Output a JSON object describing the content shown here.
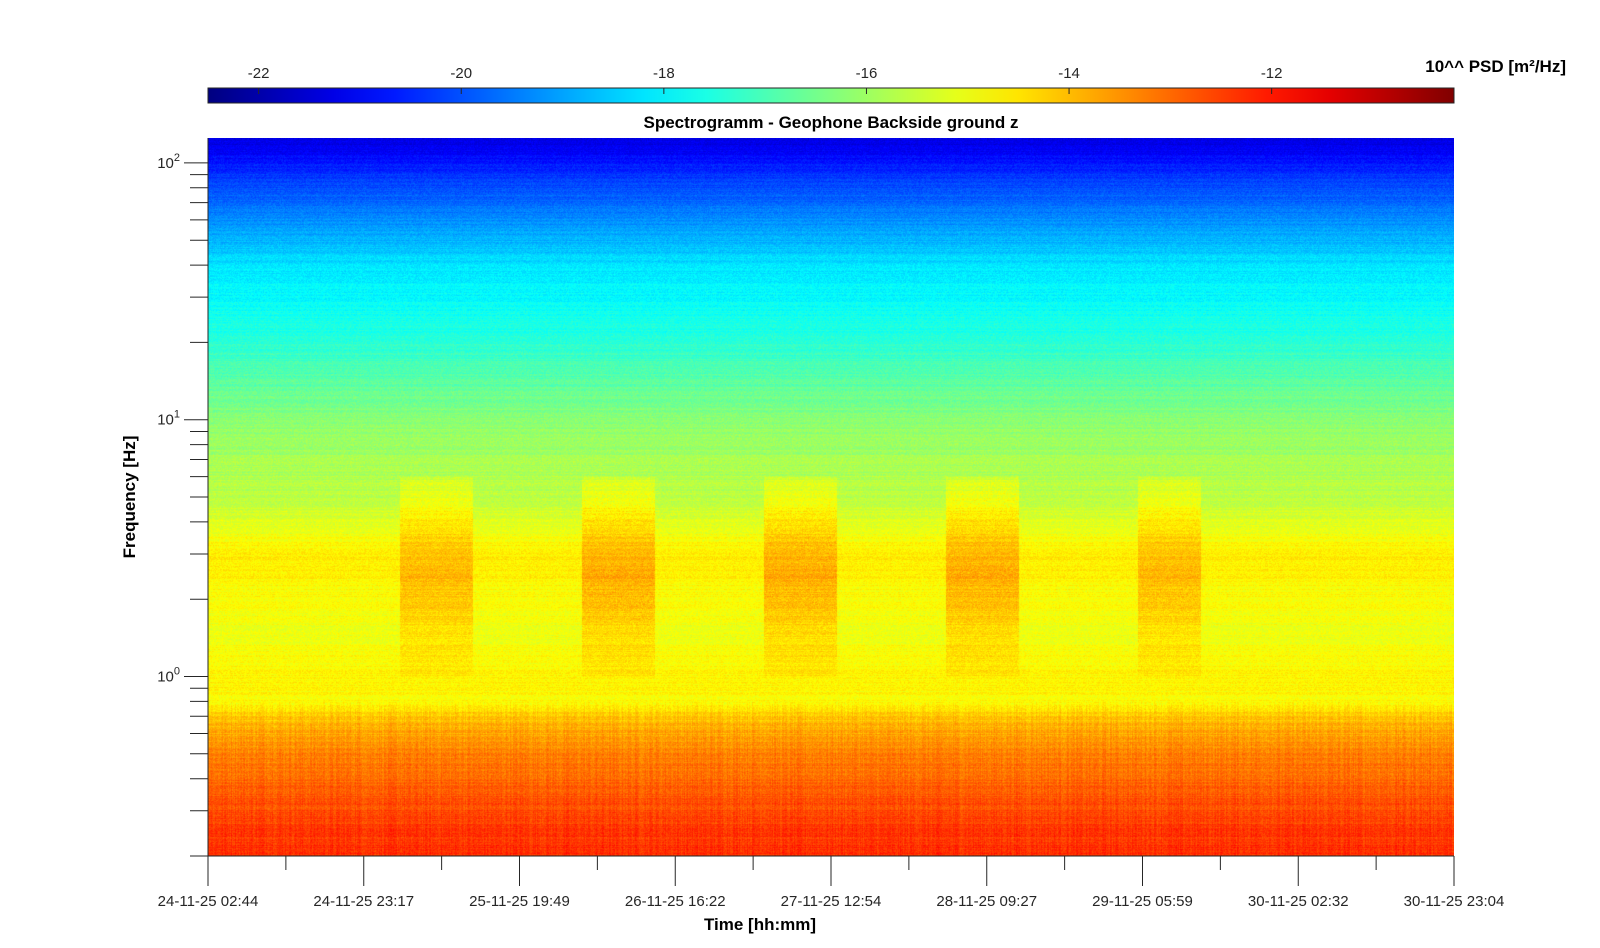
{
  "chart_data": {
    "type": "heatmap",
    "title": "Spectrogramm - Geophone Backside ground z",
    "xlabel": "Time [hh:mm]",
    "ylabel": "Frequency [Hz]",
    "y_scale": "log",
    "ylim": [
      0.2,
      125
    ],
    "y_ticks": [
      {
        "value": 1,
        "base": "10",
        "exp": "0"
      },
      {
        "value": 10,
        "base": "10",
        "exp": "1"
      },
      {
        "value": 100,
        "base": "10",
        "exp": "2"
      }
    ],
    "x_ticks": [
      "24-11-25 02:44",
      "24-11-25 23:17",
      "25-11-25 19:49",
      "26-11-25 16:22",
      "27-11-25 12:54",
      "28-11-25 09:27",
      "29-11-25 05:59",
      "30-11-25 02:32",
      "30-11-25 23:04"
    ],
    "colorbar": {
      "label": "10^^ PSD [m²/Hz]",
      "range": [
        -22.5,
        -10.2
      ],
      "ticks": [
        "-22",
        "-20",
        "-18",
        "-16",
        "-14",
        "-12"
      ],
      "tick_values": [
        -22,
        -20,
        -18,
        -16,
        -14,
        -12
      ],
      "colormap": "jet"
    },
    "psd_profile": [
      {
        "f": 0.2,
        "psd": -12.2
      },
      {
        "f": 0.3,
        "psd": -12.6
      },
      {
        "f": 0.5,
        "psd": -13.3
      },
      {
        "f": 0.7,
        "psd": -14.1
      },
      {
        "f": 0.8,
        "psd": -14.8
      },
      {
        "f": 1.0,
        "psd": -14.7
      },
      {
        "f": 1.5,
        "psd": -15.0
      },
      {
        "f": 3.0,
        "psd": -14.6
      },
      {
        "f": 5.0,
        "psd": -15.6
      },
      {
        "f": 10.0,
        "psd": -16.2
      },
      {
        "f": 20.0,
        "psd": -17.4
      },
      {
        "f": 40.0,
        "psd": -18.2
      },
      {
        "f": 80.0,
        "psd": -20.0
      },
      {
        "f": 120.0,
        "psd": -21.3
      }
    ],
    "daily_activity_bands": [
      {
        "start_day": 1.05,
        "end_day": 1.45,
        "f_low": 1.0,
        "f_high": 6.0,
        "peak_psd": -13.8
      },
      {
        "start_day": 2.05,
        "end_day": 2.45,
        "f_low": 1.0,
        "f_high": 6.0,
        "peak_psd": -13.6
      },
      {
        "start_day": 3.05,
        "end_day": 3.45,
        "f_low": 1.0,
        "f_high": 6.0,
        "peak_psd": -13.6
      },
      {
        "start_day": 4.05,
        "end_day": 4.45,
        "f_low": 1.0,
        "f_high": 6.0,
        "peak_psd": -13.6
      },
      {
        "start_day": 5.1,
        "end_day": 5.45,
        "f_low": 1.0,
        "f_high": 6.0,
        "peak_psd": -13.8
      }
    ]
  }
}
